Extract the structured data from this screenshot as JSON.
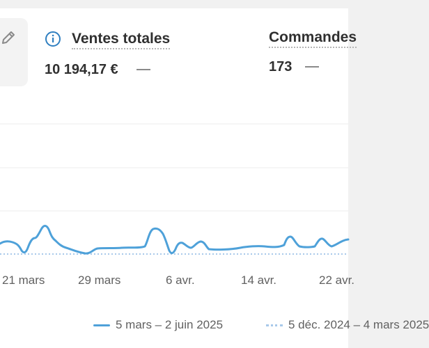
{
  "metrics": [
    {
      "title": "Ventes totales",
      "value": "10 194,17 €",
      "info_icon": "info-icon",
      "change_indicator": "—"
    },
    {
      "title": "Commandes",
      "value": "173",
      "change_indicator": "—"
    }
  ],
  "edit_icon": "pencil-icon",
  "chart_data": {
    "type": "line",
    "title": "",
    "xlabel": "",
    "ylabel": "",
    "x_tick_labels": [
      "21 mars",
      "29 mars",
      "6 avr.",
      "14 avr.",
      "22 avr."
    ],
    "grid": true,
    "legend_position": "bottom",
    "series": [
      {
        "name": "5 mars – 2 juin 2025",
        "color": "#4ea1d9",
        "style": "solid"
      },
      {
        "name": "5 déc. 2024 – 4 mars 2025",
        "color": "#a8c9ea",
        "style": "dotted"
      }
    ]
  },
  "colors": {
    "accent": "#4ea1d9",
    "comparison": "#a8c9ea",
    "info": "#2f7fc0"
  }
}
